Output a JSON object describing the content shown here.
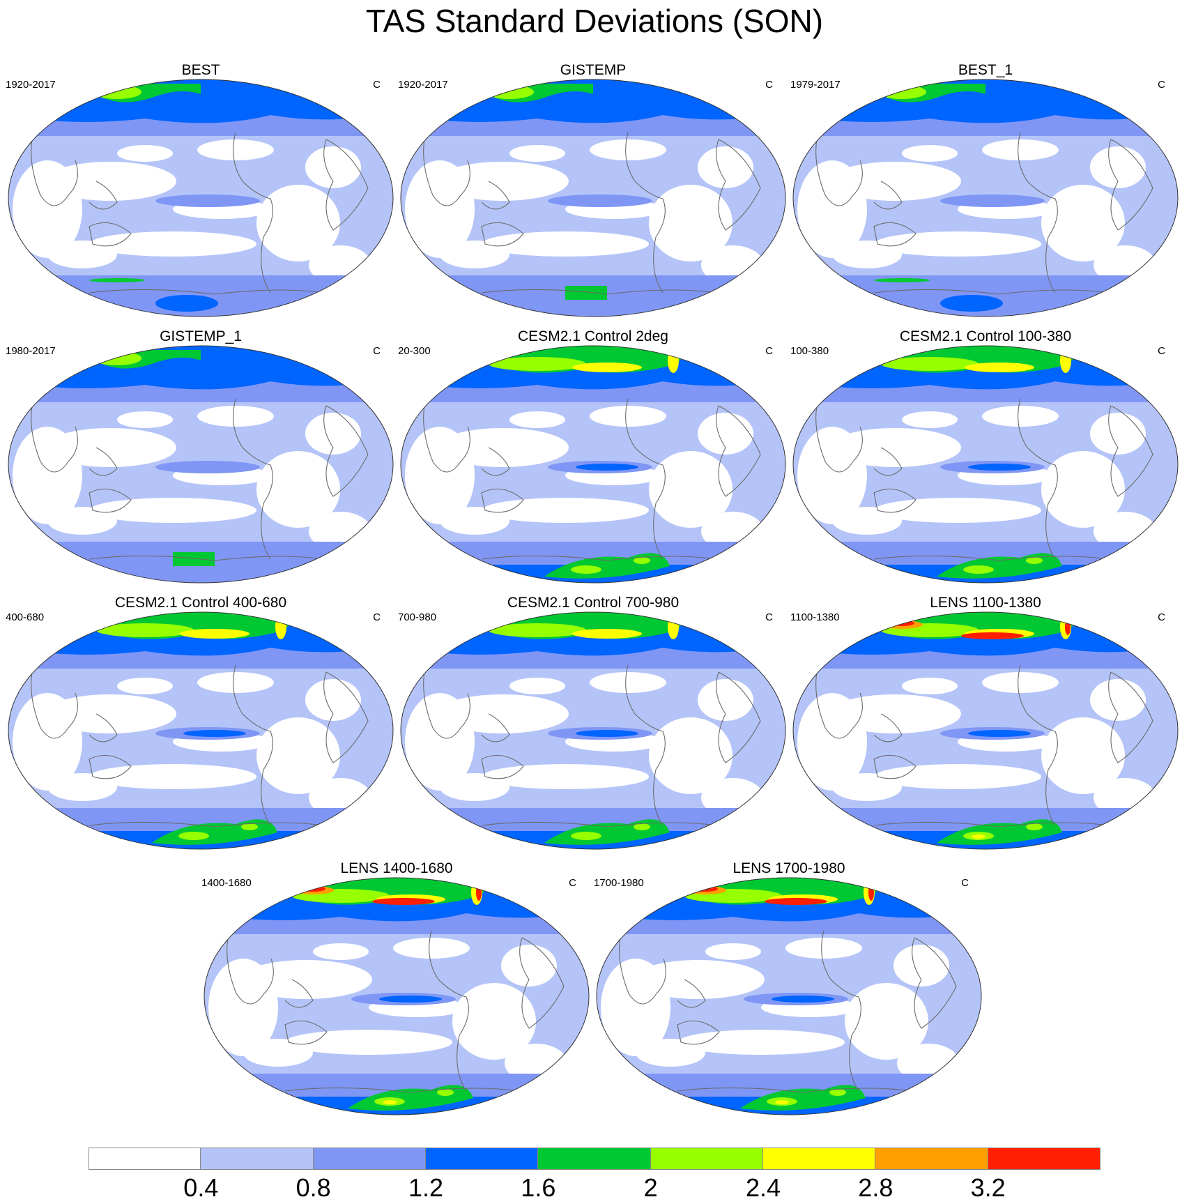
{
  "title": "TAS Standard Deviations (SON)",
  "unit_label": "C",
  "panels": [
    {
      "title": "BEST",
      "period": "1920-2017",
      "style": "obs"
    },
    {
      "title": "GISTEMP",
      "period": "1920-2017",
      "style": "obs_gis"
    },
    {
      "title": "BEST_1",
      "period": "1979-2017",
      "style": "obs"
    },
    {
      "title": "GISTEMP_1",
      "period": "1980-2017",
      "style": "obs_gis"
    },
    {
      "title": "CESM2.1 Control 2deg",
      "period": "20-300",
      "style": "model"
    },
    {
      "title": "CESM2.1 Control 100-380",
      "period": "100-380",
      "style": "model"
    },
    {
      "title": "CESM2.1 Control 400-680",
      "period": "400-680",
      "style": "model"
    },
    {
      "title": "CESM2.1 Control 700-980",
      "period": "700-980",
      "style": "model"
    },
    {
      "title": "LENS 1100-1380",
      "period": "1100-1380",
      "style": "lens"
    },
    {
      "title": "LENS 1400-1680",
      "period": "1400-1680",
      "style": "lens"
    },
    {
      "title": "LENS 1700-1980",
      "period": "1700-1980",
      "style": "lens"
    }
  ],
  "colorbar": {
    "labels": [
      "0.4",
      "0.8",
      "1.2",
      "1.6",
      "2",
      "2.4",
      "2.8",
      "3.2"
    ],
    "colors": [
      "#ffffff",
      "#b4c4f8",
      "#7f96f5",
      "#0064ff",
      "#00c832",
      "#96ff00",
      "#ffff00",
      "#ffa000",
      "#ff1e00"
    ]
  }
}
